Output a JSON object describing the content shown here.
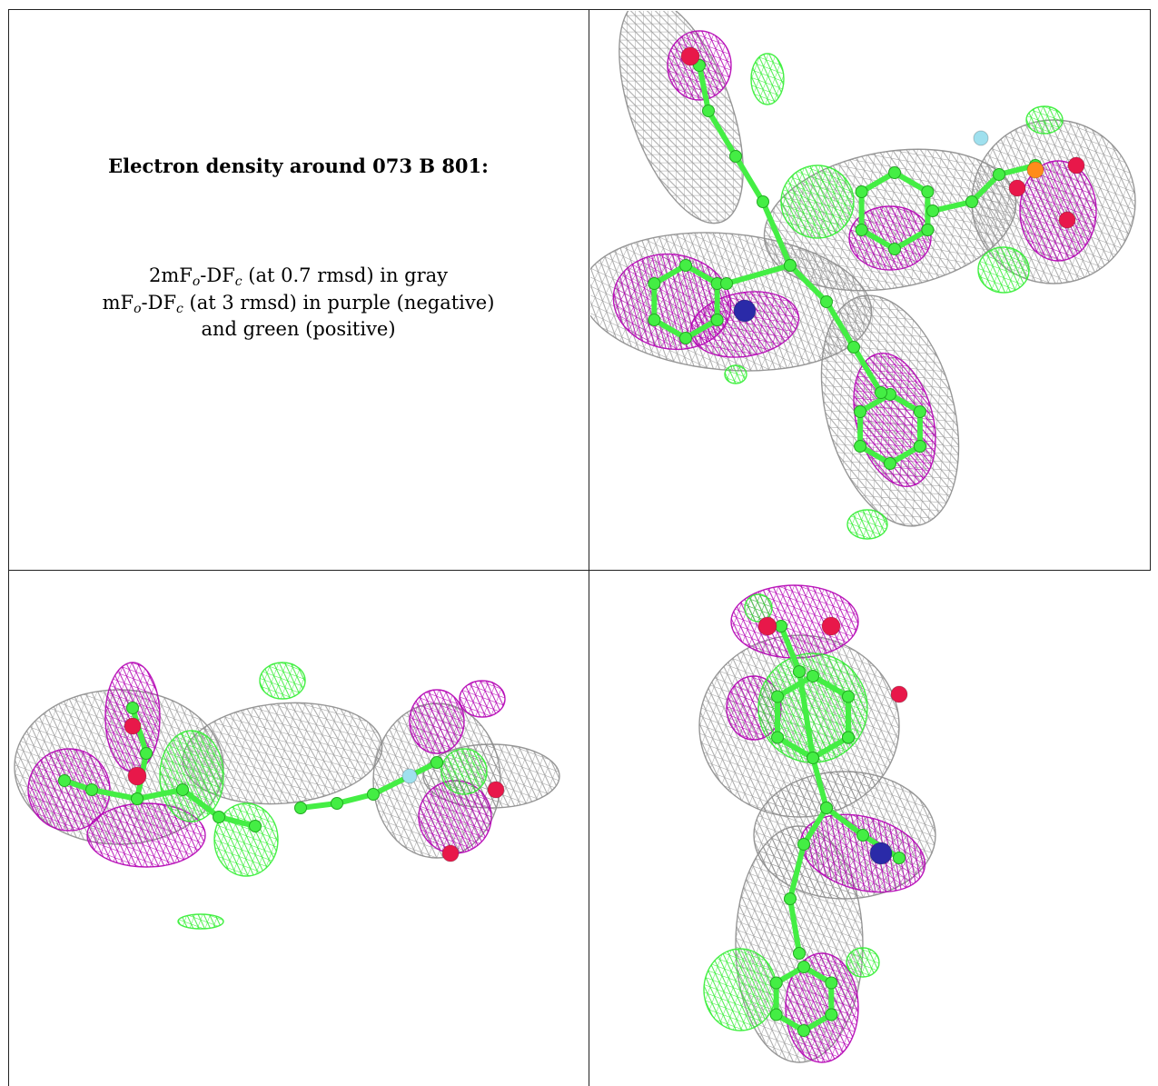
{
  "caption": {
    "title": "Electron density around 073 B 801:",
    "line1": {
      "prefix": "2mF",
      "sub1": "o",
      "mid": "-DF",
      "sub2": "c",
      "suffix": " (at 0.7 rmsd) in gray"
    },
    "line2": {
      "prefix": "mF",
      "sub1": "o",
      "mid": "-DF",
      "sub2": "c",
      "suffix": " (at 3 rmsd) in purple (negative)"
    },
    "line3": "and green (positive)"
  },
  "colors": {
    "map_2fofc": "#8c8c8c",
    "map_fofc_negative": "#b400b4",
    "map_fofc_positive": "#33ee33",
    "model_carbon": "#44ee44",
    "oxygen": "#e8184a",
    "nitrogen": "#2a2aa8",
    "phosphorus": "#ff8c1a",
    "fluorine": "#9fe0ee"
  },
  "panels": [
    {
      "view": "top-right"
    },
    {
      "view": "bottom-left"
    },
    {
      "view": "bottom-right"
    }
  ]
}
